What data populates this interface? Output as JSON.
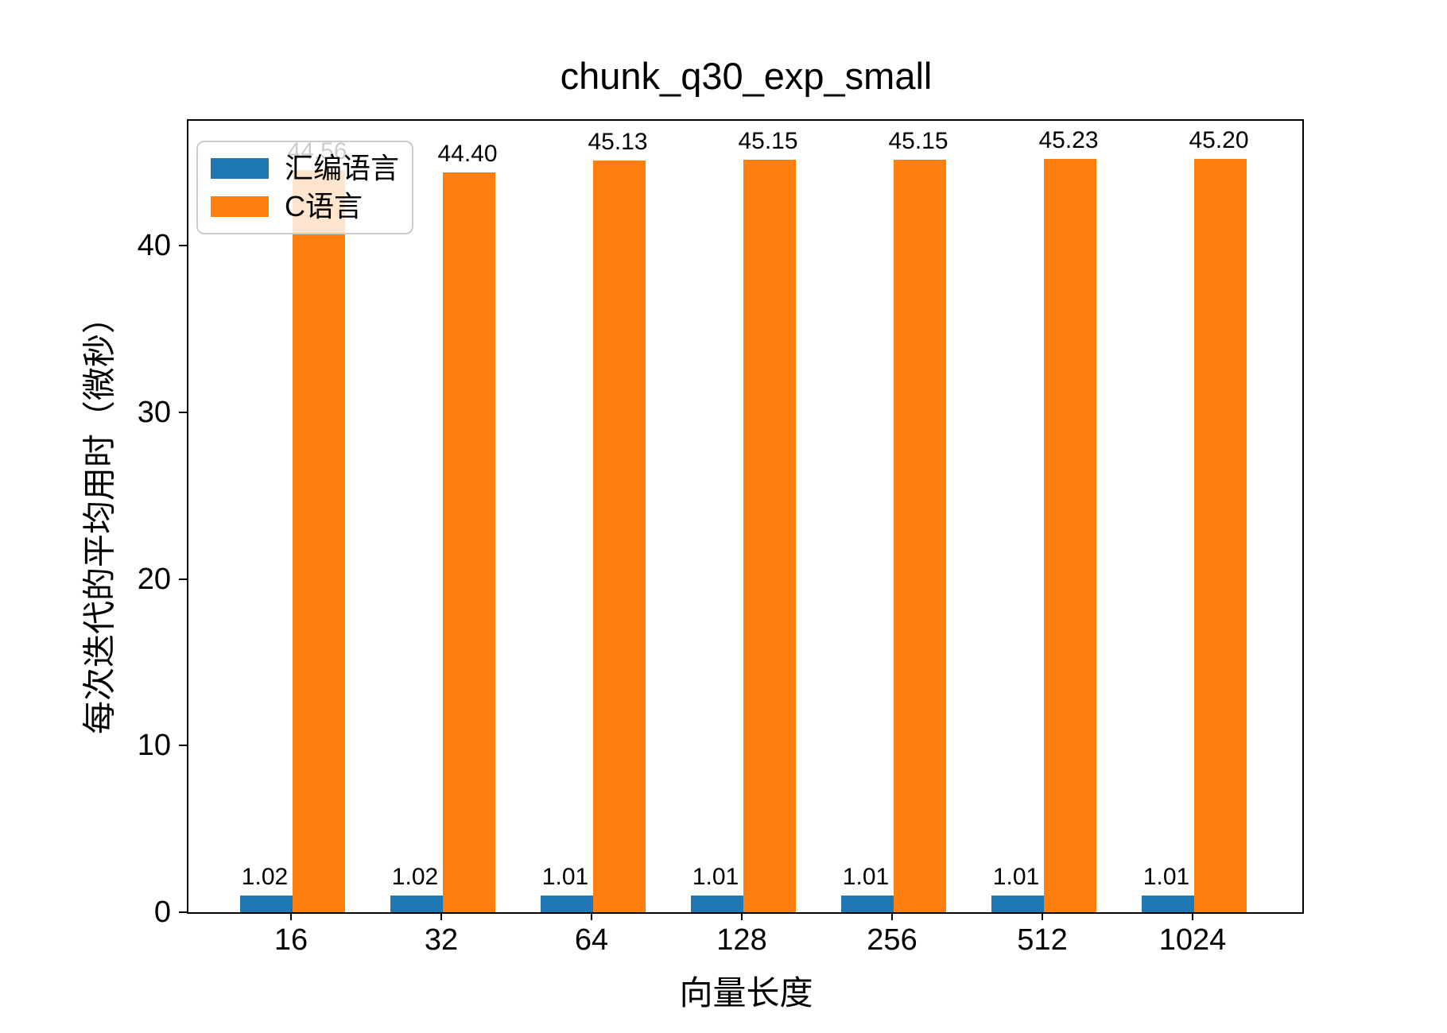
{
  "chart_data": {
    "type": "bar",
    "title": "chunk_q30_exp_small",
    "xlabel": "向量长度",
    "ylabel": "每次迭代的平均用时（微秒）",
    "categories": [
      "16",
      "32",
      "64",
      "128",
      "256",
      "512",
      "1024"
    ],
    "series": [
      {
        "name": "汇编语言",
        "slug": "asm",
        "color": "#1f77b4",
        "values": [
          1.02,
          1.02,
          1.01,
          1.01,
          1.01,
          1.01,
          1.01
        ],
        "labels": [
          "1.02",
          "1.02",
          "1.01",
          "1.01",
          "1.01",
          "1.01",
          "1.01"
        ]
      },
      {
        "name": "C语言",
        "slug": "c",
        "color": "#ff7f0e",
        "values": [
          44.56,
          44.4,
          45.13,
          45.15,
          45.15,
          45.23,
          45.2
        ],
        "labels": [
          "44.56",
          "44.40",
          "45.13",
          "45.15",
          "45.15",
          "45.23",
          "45.20"
        ]
      }
    ],
    "yticks": [
      "0",
      "10",
      "20",
      "30",
      "40"
    ],
    "ylim": [
      0,
      47.5
    ],
    "grid": false,
    "legend_position": "upper-left",
    "background_color": "#ffffff",
    "text_color": "#000000"
  }
}
